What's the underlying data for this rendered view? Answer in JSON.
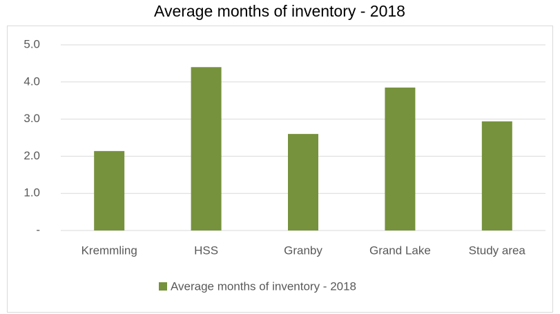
{
  "chart_data": {
    "type": "bar",
    "title": "Average months of inventory - 2018",
    "categories": [
      "Kremmling",
      "HSS",
      "Granby",
      "Grand Lake",
      "Study area"
    ],
    "series": [
      {
        "name": "Average months of inventory - 2018",
        "color": "#76923c",
        "values": [
          2.14,
          4.4,
          2.6,
          3.85,
          2.94
        ]
      }
    ],
    "ylim": [
      0,
      5
    ],
    "yticks": [
      {
        "value": 0,
        "label": "-"
      },
      {
        "value": 1,
        "label": "1.0"
      },
      {
        "value": 2,
        "label": "2.0"
      },
      {
        "value": 3,
        "label": "3.0"
      },
      {
        "value": 4,
        "label": "4.0"
      },
      {
        "value": 5,
        "label": "5.0"
      }
    ],
    "grid": true,
    "legend": "bottom"
  }
}
